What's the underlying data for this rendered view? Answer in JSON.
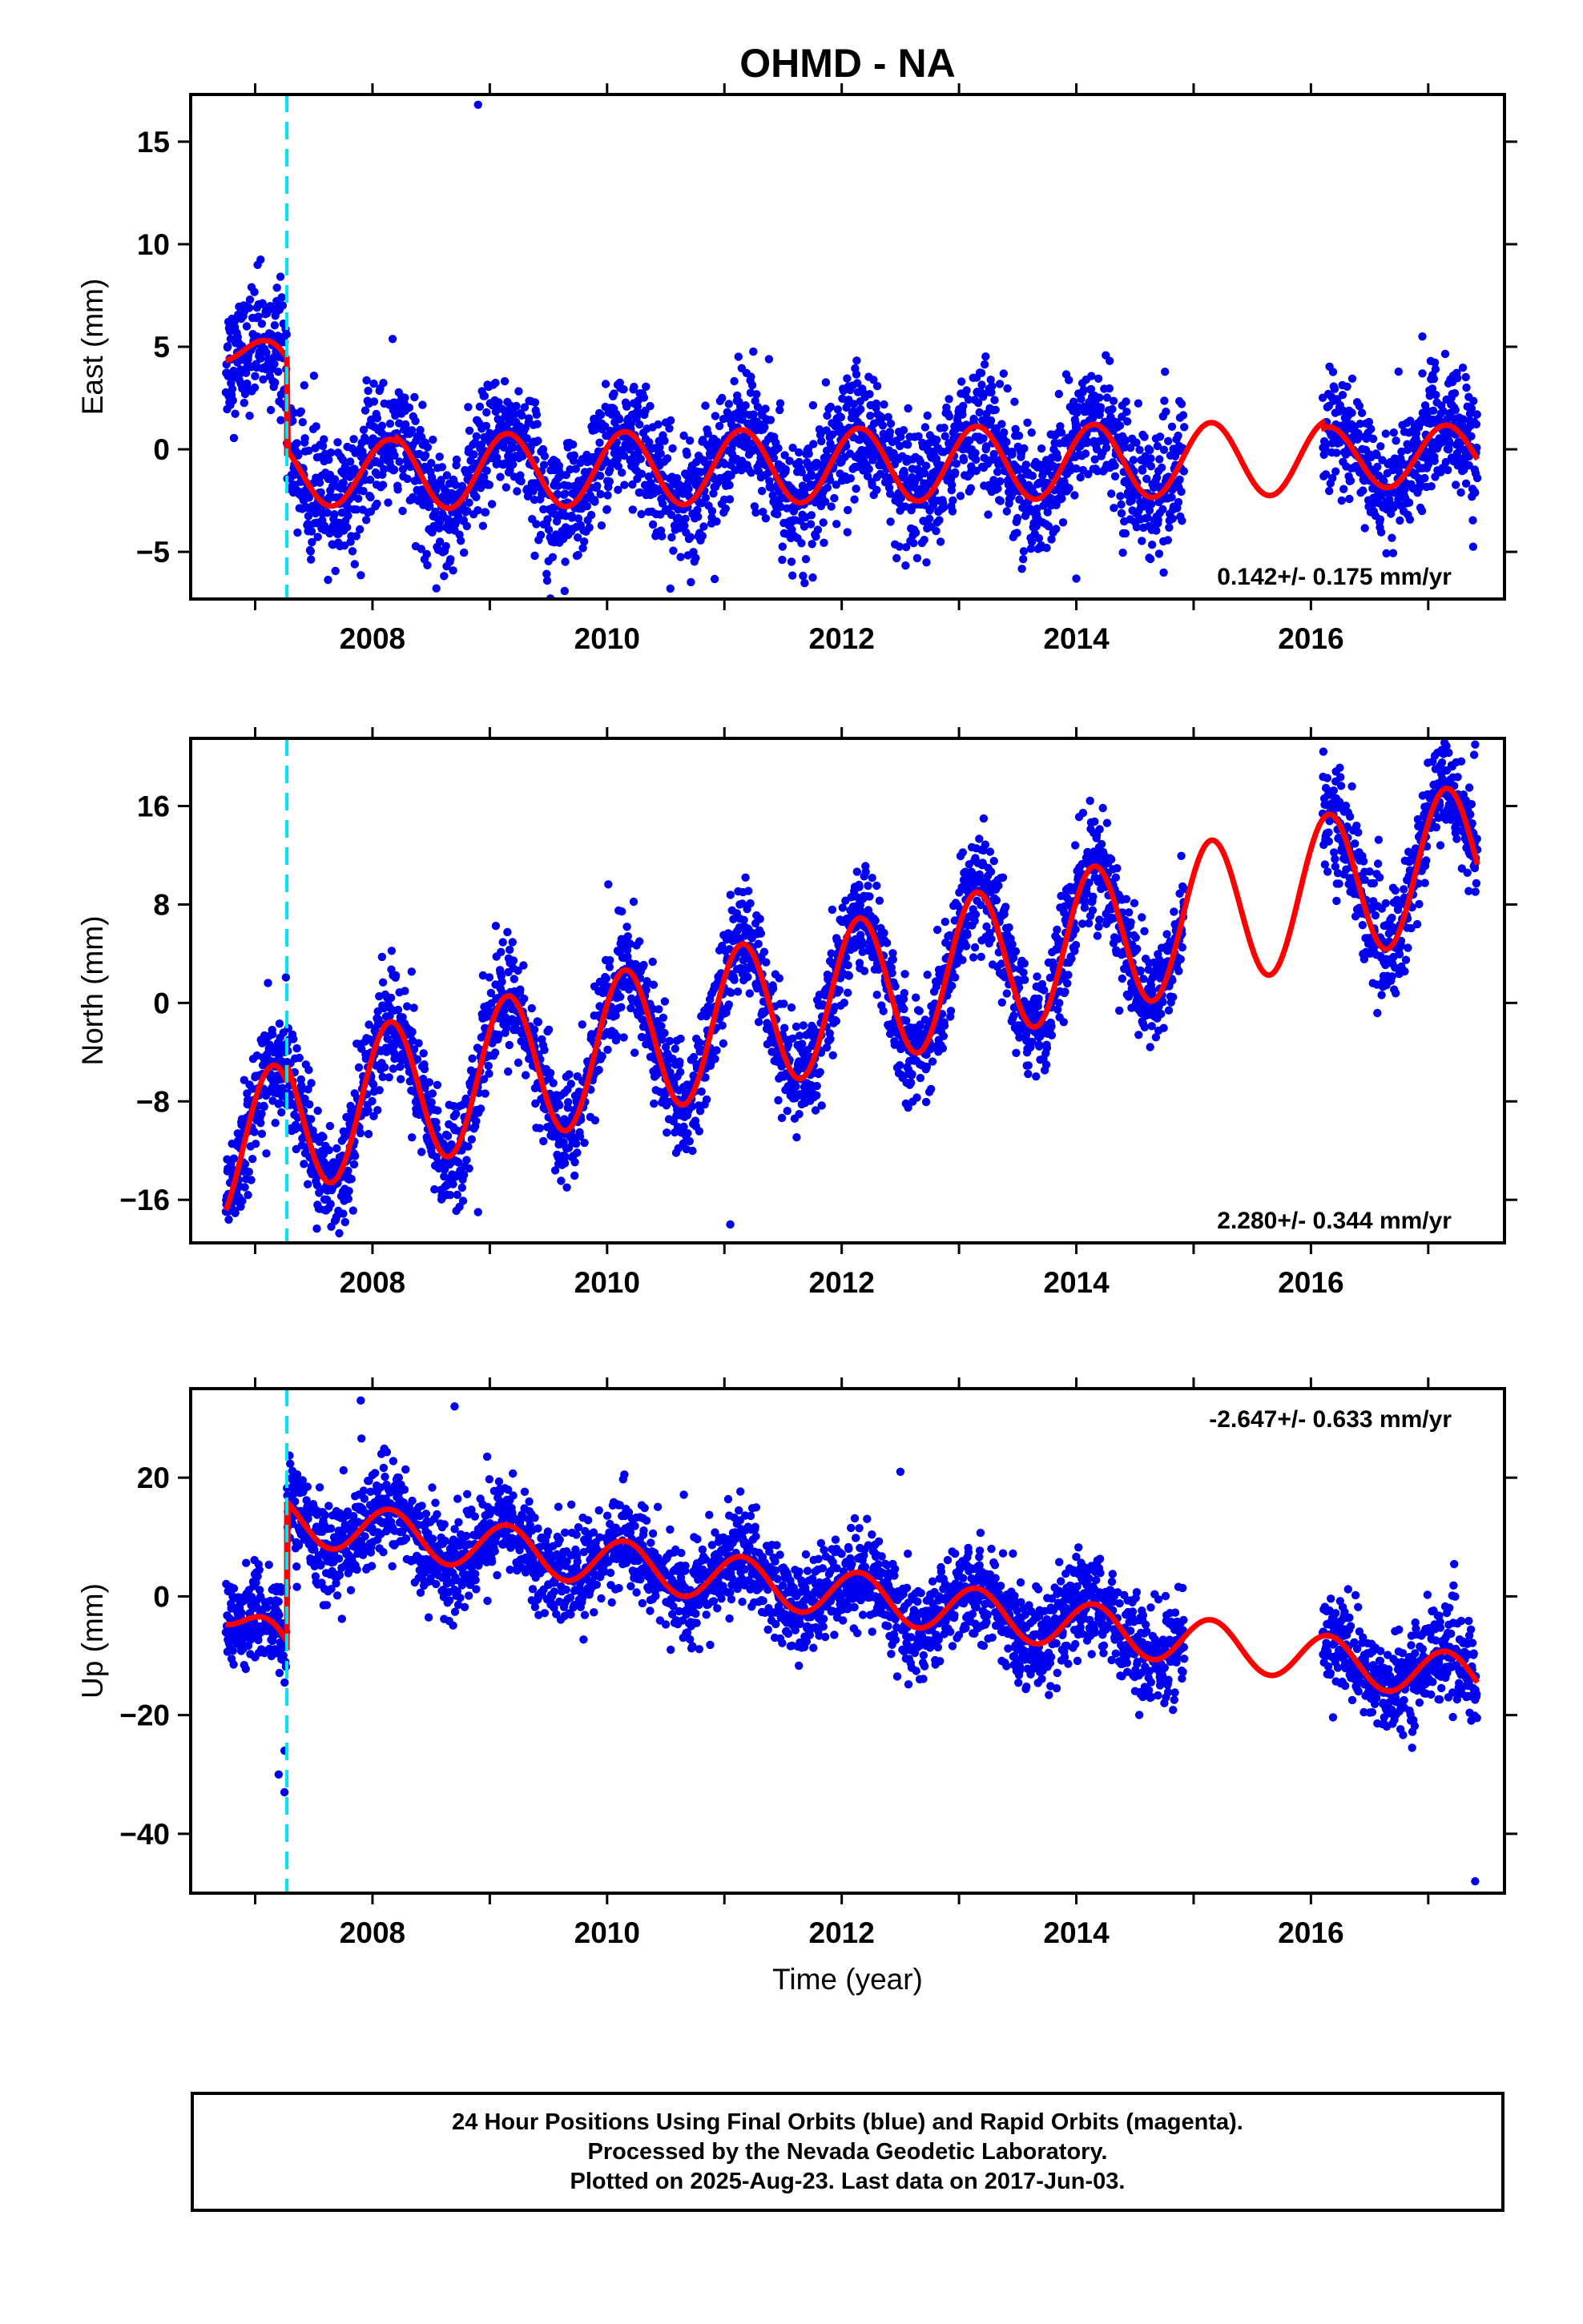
{
  "title": "OHMD - NA",
  "xlabel": "Time (year)",
  "caption": [
    "24 Hour Positions Using Final Orbits (blue) and Rapid Orbits (magenta).",
    "Processed by the Nevada Geodetic Laboratory.",
    "Plotted on 2025-Aug-23. Last data on 2017-Jun-03."
  ],
  "colors": {
    "points": "#0000ee",
    "model": "#ff0000",
    "marker": "#00e5ee"
  },
  "chart_data": [
    {
      "type": "scatter",
      "ylabel": "East (mm)",
      "rate_text": "0.142+/- 0.175 mm/yr",
      "rate_position": "bottom-right",
      "xlim": [
        2006.45,
        2017.65
      ],
      "ylim": [
        -7.3,
        17.3
      ],
      "xticks": [
        2008,
        2010,
        2012,
        2014,
        2016
      ],
      "yticks": [
        -5,
        0,
        5,
        10,
        15
      ],
      "marker_x": 2007.27,
      "data_range": [
        2006.75,
        2017.42
      ],
      "gap": [
        2014.92,
        2016.1
      ],
      "points_style": "dense daily scatter, ~1.5 mm spread",
      "model": {
        "segments": [
          {
            "x0": 2006.75,
            "x1": 2007.27,
            "y0": 5.3,
            "y1": 3.6
          },
          {
            "x0": 2007.27,
            "x1": 2017.42,
            "y0": -1.2,
            "y1": -0.3
          }
        ],
        "seasonal": [
          {
            "start": 2006.75,
            "end": 2007.27,
            "amp": 1.2
          },
          {
            "start": 2007.27,
            "end": 2008.2,
            "amp": 1.6
          },
          {
            "start": 2008.2,
            "end": 2014.92,
            "amp": 1.8
          },
          {
            "start": 2014.92,
            "end": 2016.1,
            "amp": 1.8
          },
          {
            "start": 2016.1,
            "end": 2017.42,
            "amp": 1.5
          }
        ],
        "outliers": [
          [
            2008.9,
            16.8
          ],
          [
            2014.0,
            -6.3
          ],
          [
            2016.95,
            5.5
          ]
        ]
      }
    },
    {
      "type": "scatter",
      "ylabel": "North (mm)",
      "rate_text": "2.280+/- 0.344 mm/yr",
      "rate_position": "bottom-right",
      "xlim": [
        2006.45,
        2017.65
      ],
      "ylim": [
        -19.5,
        21.5
      ],
      "xticks": [
        2008,
        2010,
        2012,
        2014,
        2016
      ],
      "yticks": [
        -16,
        -8,
        0,
        8,
        16
      ],
      "marker_x": 2007.27,
      "data_range": [
        2006.75,
        2017.42
      ],
      "gap": [
        2014.92,
        2016.1
      ],
      "model": {
        "segments": [
          {
            "x0": 2006.75,
            "x1": 2007.27,
            "y0": -12.0,
            "y1": -10.8
          },
          {
            "x0": 2007.27,
            "x1": 2017.42,
            "y0": -9.4,
            "y1": 12.0
          }
        ],
        "seasonal": [
          {
            "start": 2006.75,
            "end": 2017.42,
            "amp": 6.0
          }
        ],
        "outliers": [
          [
            2011.05,
            -18.0
          ],
          [
            2008.9,
            -17.0
          ],
          [
            2017.4,
            21.0
          ]
        ]
      }
    },
    {
      "type": "scatter",
      "ylabel": "Up (mm)",
      "rate_text": "-2.647+/- 0.633 mm/yr",
      "rate_position": "top-right",
      "xlim": [
        2006.45,
        2017.65
      ],
      "ylim": [
        -50,
        35
      ],
      "xticks": [
        2008,
        2010,
        2012,
        2014,
        2016
      ],
      "yticks": [
        -40,
        -20,
        0,
        20
      ],
      "marker_x": 2007.27,
      "data_range": [
        2006.75,
        2017.42
      ],
      "gap": [
        2014.92,
        2016.1
      ],
      "model": {
        "segments": [
          {
            "x0": 2006.75,
            "x1": 2007.27,
            "y0": -1.5,
            "y1": -10.5
          },
          {
            "x0": 2007.27,
            "x1": 2017.42,
            "y0": 13.0,
            "y1": -14.0
          }
        ],
        "seasonal": [
          {
            "start": 2006.75,
            "end": 2017.42,
            "amp": 4.0
          }
        ],
        "outliers": [
          [
            2007.25,
            -33
          ],
          [
            2007.2,
            -30
          ],
          [
            2007.25,
            -26
          ],
          [
            2017.4,
            -48
          ],
          [
            2007.9,
            33
          ],
          [
            2008.7,
            32
          ],
          [
            2012.5,
            21
          ]
        ]
      }
    }
  ]
}
